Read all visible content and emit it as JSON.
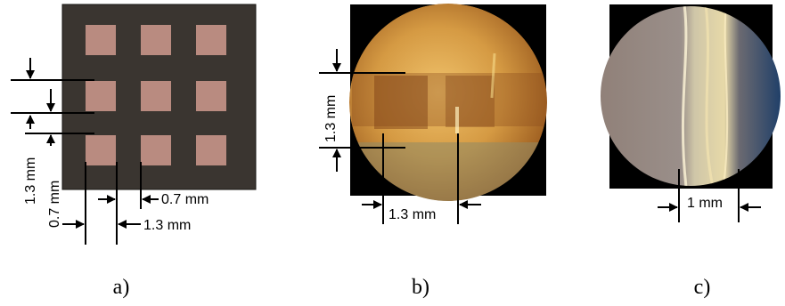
{
  "panels": [
    {
      "caption": "a)",
      "labels": {
        "pitch_vertical": "1.3 mm",
        "pad_vertical": "0.7 mm",
        "pad_horizontal": "0.7 mm",
        "pitch_horizontal": "1.3 mm"
      }
    },
    {
      "caption": "b)",
      "labels": {
        "pitch_vertical": "1.3 mm",
        "pitch_horizontal": "1.3 mm"
      }
    },
    {
      "caption": "c)",
      "labels": {
        "width": "1 mm"
      }
    }
  ],
  "colors": {
    "board": "#3a3530",
    "pad": "#b98b80",
    "frame": "#000000",
    "scope_warm": "#d79a43",
    "scope_cool": "#8f8a86"
  }
}
